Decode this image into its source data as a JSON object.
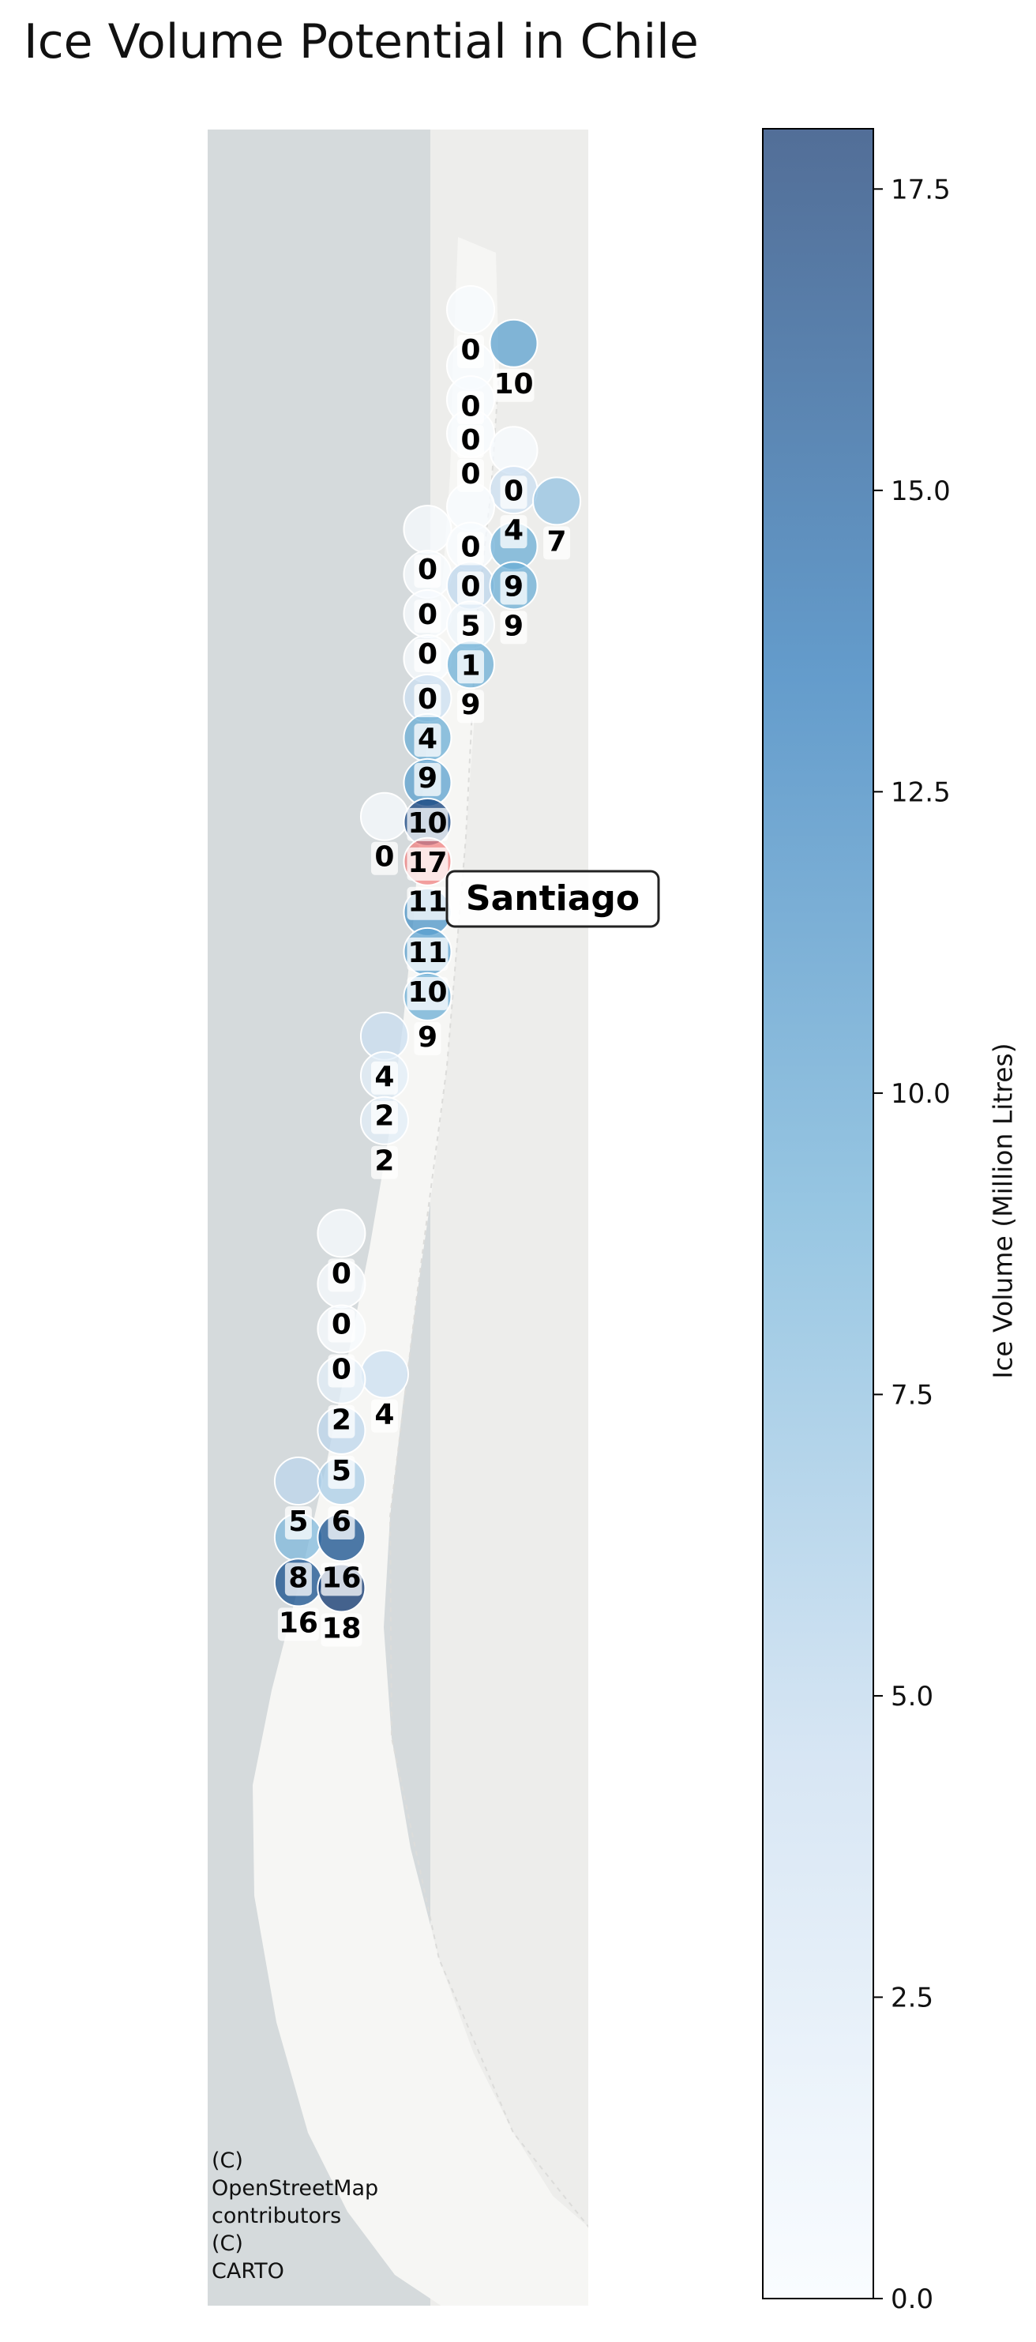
{
  "title": "Ice Volume Potential in Chile",
  "attribution": [
    "(C)",
    "OpenStreetMap",
    "contributors",
    "(C)",
    "CARTO"
  ],
  "colorbar": {
    "label": "Ice Volume (Million Litres)",
    "min": 0.0,
    "max": 18.0,
    "ticks": [
      "0.0",
      "2.5",
      "5.0",
      "7.5",
      "10.0",
      "12.5",
      "15.0",
      "17.5"
    ],
    "colors": [
      "#f7fbff",
      "#c6dbef",
      "#6baed6",
      "#2171b5",
      "#08306b"
    ]
  },
  "highlight_color": "#f08080",
  "city": {
    "name": "Santiago"
  },
  "map_colors": {
    "ocean": "#d5dadc",
    "land": "#f6f6f4",
    "neighbor": "#ededeb"
  },
  "sites": [
    {
      "v": 0,
      "lat": -18.6,
      "lon": -70.2
    },
    {
      "v": 10,
      "lat": -19.2,
      "lon": -69.49
    },
    {
      "v": 0,
      "lat": -19.6,
      "lon": -70.2
    },
    {
      "v": 0,
      "lat": -20.2,
      "lon": -70.2
    },
    {
      "v": 0,
      "lat": -20.8,
      "lon": -70.2
    },
    {
      "v": 0,
      "lat": -21.1,
      "lon": -69.49
    },
    {
      "v": 4,
      "lat": -21.8,
      "lon": -69.49
    },
    {
      "v": 7,
      "lat": -22.0,
      "lon": -68.78
    },
    {
      "v": 0,
      "lat": -22.1,
      "lon": -70.2
    },
    {
      "v": 0,
      "lat": -22.5,
      "lon": -70.91
    },
    {
      "v": 0,
      "lat": -22.8,
      "lon": -70.2
    },
    {
      "v": 9,
      "lat": -22.8,
      "lon": -69.49
    },
    {
      "v": 0,
      "lat": -23.3,
      "lon": -70.91
    },
    {
      "v": 5,
      "lat": -23.5,
      "lon": -70.2
    },
    {
      "v": 9,
      "lat": -23.5,
      "lon": -69.49
    },
    {
      "v": 0,
      "lat": -24.0,
      "lon": -70.91
    },
    {
      "v": 1,
      "lat": -24.2,
      "lon": -70.2
    },
    {
      "v": 0,
      "lat": -24.8,
      "lon": -70.91
    },
    {
      "v": 9,
      "lat": -24.9,
      "lon": -70.2
    },
    {
      "v": 4,
      "lat": -25.5,
      "lon": -70.91
    },
    {
      "v": 9,
      "lat": -26.2,
      "lon": -70.91
    },
    {
      "v": 10,
      "lat": -27.0,
      "lon": -70.91
    },
    {
      "v": 0,
      "lat": -27.6,
      "lon": -71.62
    },
    {
      "v": 17,
      "lat": -27.7,
      "lon": -70.91
    },
    {
      "v": 11,
      "lat": -28.4,
      "lon": -70.91,
      "highlight": true
    },
    {
      "v": 11,
      "lat": -29.3,
      "lon": -70.91
    },
    {
      "v": 10,
      "lat": -30.0,
      "lon": -70.91
    },
    {
      "v": 9,
      "lat": -30.8,
      "lon": -70.91
    },
    {
      "v": 4,
      "lat": -31.5,
      "lon": -71.62
    },
    {
      "v": 2,
      "lat": -32.2,
      "lon": -71.62
    },
    {
      "v": 2,
      "lat": -33.0,
      "lon": -71.62
    },
    {
      "v": 0,
      "lat": -35.0,
      "lon": -72.33
    },
    {
      "v": 0,
      "lat": -35.9,
      "lon": -72.33
    },
    {
      "v": 0,
      "lat": -36.7,
      "lon": -72.33
    },
    {
      "v": 4,
      "lat": -37.5,
      "lon": -71.62
    },
    {
      "v": 2,
      "lat": -37.6,
      "lon": -72.33
    },
    {
      "v": 5,
      "lat": -38.5,
      "lon": -72.33
    },
    {
      "v": 5,
      "lat": -39.4,
      "lon": -73.04
    },
    {
      "v": 6,
      "lat": -39.4,
      "lon": -72.33
    },
    {
      "v": 8,
      "lat": -40.4,
      "lon": -73.04
    },
    {
      "v": 16,
      "lat": -40.4,
      "lon": -72.33
    },
    {
      "v": 16,
      "lat": -41.2,
      "lon": -73.04
    },
    {
      "v": 18,
      "lat": -41.3,
      "lon": -72.33
    }
  ]
}
